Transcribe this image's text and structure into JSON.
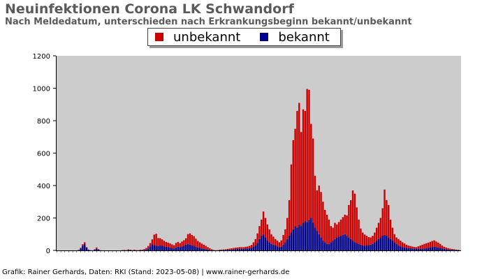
{
  "header": {
    "title": "Neuinfektionen Corona LK Schwandorf",
    "subtitle": "Nach Meldedatum, unterschieden nach Erkrankungsbeginn bekannt/unbekannt"
  },
  "legend": {
    "items": [
      {
        "label": "unbekannt",
        "color": "#cc0000"
      },
      {
        "label": "bekannt",
        "color": "#00008b"
      }
    ]
  },
  "credit": "Grafik: Rainer Gerhards, Daten: RKI (Stand: 2023-05-08) | www.rainer-gerhards.de",
  "chart_data": {
    "type": "bar",
    "stacked": true,
    "ylim": [
      0,
      1200
    ],
    "yticks": [
      0,
      200,
      400,
      600,
      800,
      1000,
      1200
    ],
    "grid": false,
    "legend_position": "top-center",
    "plot_background": "#cccccc",
    "series": [
      {
        "name": "bekannt",
        "color": "#00008b",
        "values": [
          0,
          0,
          0,
          0,
          0,
          0,
          0,
          0,
          0,
          0,
          0,
          2,
          12,
          28,
          38,
          15,
          4,
          1,
          0,
          4,
          10,
          4,
          1,
          0,
          0,
          0,
          0,
          0,
          0,
          0,
          0,
          0,
          0,
          1,
          2,
          1,
          3,
          2,
          1,
          2,
          1,
          1,
          2,
          2,
          3,
          6,
          12,
          25,
          38,
          32,
          28,
          26,
          30,
          28,
          24,
          22,
          20,
          18,
          15,
          12,
          18,
          22,
          20,
          25,
          28,
          35,
          40,
          35,
          30,
          28,
          22,
          18,
          15,
          12,
          10,
          8,
          5,
          3,
          2,
          1,
          0,
          1,
          2,
          2,
          3,
          3,
          4,
          5,
          6,
          7,
          8,
          9,
          10,
          10,
          10,
          11,
          12,
          14,
          16,
          22,
          30,
          45,
          70,
          90,
          100,
          80,
          60,
          50,
          40,
          35,
          30,
          25,
          20,
          22,
          35,
          50,
          70,
          90,
          110,
          130,
          150,
          140,
          160,
          150,
          170,
          180,
          175,
          190,
          200,
          170,
          140,
          120,
          100,
          80,
          60,
          50,
          40,
          40,
          50,
          60,
          70,
          80,
          85,
          90,
          95,
          100,
          90,
          80,
          70,
          60,
          50,
          45,
          40,
          35,
          30,
          28,
          30,
          32,
          35,
          40,
          50,
          60,
          70,
          80,
          90,
          95,
          90,
          80,
          70,
          60,
          50,
          40,
          30,
          25,
          20,
          18,
          15,
          14,
          13,
          12,
          11,
          10,
          10,
          10,
          10,
          12,
          14,
          16,
          18,
          20,
          22,
          20,
          18,
          15,
          12,
          10,
          8,
          6,
          5,
          4,
          3,
          2,
          2,
          1
        ]
      },
      {
        "name": "unbekannt",
        "color": "#cc0000",
        "values": [
          0,
          0,
          0,
          0,
          0,
          0,
          0,
          0,
          0,
          0,
          0,
          1,
          4,
          10,
          12,
          5,
          1,
          0,
          0,
          3,
          8,
          3,
          0,
          0,
          0,
          0,
          0,
          0,
          0,
          0,
          0,
          0,
          0,
          1,
          1,
          1,
          3,
          2,
          1,
          2,
          1,
          1,
          2,
          2,
          5,
          9,
          15,
          20,
          30,
          65,
          75,
          50,
          45,
          40,
          35,
          30,
          28,
          25,
          22,
          20,
          28,
          30,
          25,
          30,
          35,
          40,
          60,
          70,
          65,
          60,
          50,
          40,
          35,
          30,
          25,
          20,
          15,
          10,
          5,
          2,
          1,
          1,
          2,
          3,
          3,
          4,
          5,
          6,
          7,
          8,
          9,
          9,
          10,
          10,
          10,
          11,
          12,
          14,
          18,
          28,
          40,
          60,
          80,
          100,
          140,
          120,
          100,
          80,
          60,
          50,
          40,
          35,
          30,
          40,
          60,
          80,
          130,
          220,
          420,
          550,
          600,
          720,
          750,
          580,
          700,
          680,
          820,
          800,
          580,
          520,
          320,
          250,
          300,
          280,
          240,
          200,
          180,
          150,
          100,
          80,
          100,
          80,
          90,
          100,
          110,
          120,
          125,
          200,
          240,
          310,
          300,
          220,
          150,
          100,
          80,
          70,
          60,
          50,
          45,
          50,
          60,
          80,
          100,
          120,
          170,
          280,
          220,
          200,
          120,
          80,
          50,
          40,
          40,
          35,
          30,
          25,
          20,
          16,
          14,
          12,
          10,
          10,
          15,
          20,
          25,
          28,
          30,
          32,
          35,
          38,
          40,
          35,
          30,
          25,
          18,
          12,
          10,
          8,
          6,
          5,
          4,
          3,
          2,
          1
        ]
      }
    ]
  }
}
